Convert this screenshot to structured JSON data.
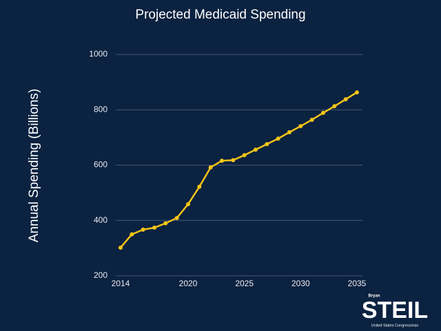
{
  "chart_data": {
    "type": "line",
    "title": "Projected Medicaid Spending",
    "y_label": "Annual Spending (Billions)",
    "x": [
      2014,
      2015,
      2016,
      2017,
      2018,
      2019,
      2020,
      2021,
      2022,
      2023,
      2024,
      2025,
      2026,
      2027,
      2028,
      2029,
      2030,
      2031,
      2032,
      2033,
      2034,
      2035
    ],
    "series": [
      {
        "name": "Medicaid Spending",
        "color": "#f5c518",
        "values": [
          302,
          350,
          367,
          374,
          390,
          409,
          459,
          522,
          592,
          616,
          618,
          636,
          656,
          676,
          696,
          719,
          741,
          764,
          789,
          813,
          838,
          863
        ]
      }
    ],
    "xlim": [
      2014,
      2035
    ],
    "xticks": [
      2014,
      2020,
      2025,
      2030,
      2035
    ],
    "ylim": [
      200,
      1000
    ],
    "yticks": [
      200,
      400,
      600,
      800,
      1000
    ],
    "grid": true,
    "legend": false
  },
  "logo": {
    "first_name": "Bryan",
    "last_name": "STEIL",
    "subtitle": "United States Congressman"
  }
}
